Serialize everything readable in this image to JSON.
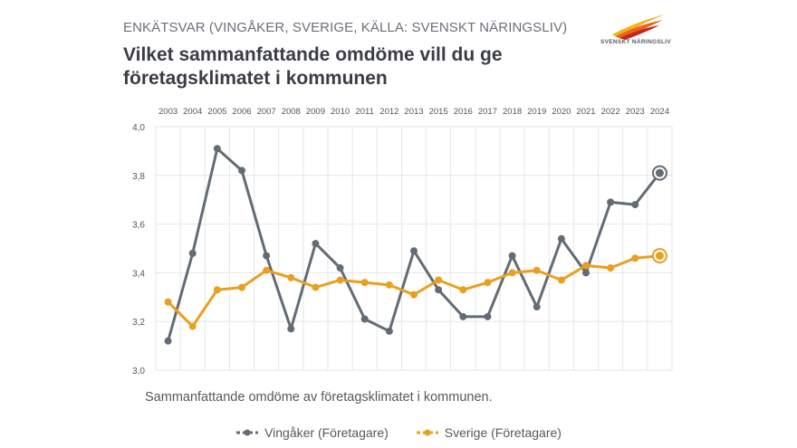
{
  "header": {
    "eyebrow": "ENKÄTSVAR (VINGÅKER, SVERIGE, KÄLLA: SVENSKT NÄRINGSLIV)",
    "title": "Vilket sammanfattande omdöme vill du ge företagsklimatet i kommunen"
  },
  "logo": {
    "text": "SVENSKT NÄRINGSLIV"
  },
  "caption": "Sammanfattande omdöme av företagsklimatet i kommunen.",
  "colors": {
    "series1": "#636b75",
    "series2": "#e8a020",
    "grid": "#e6e6e6"
  },
  "chart_data": {
    "type": "line",
    "categories": [
      "2003",
      "2004",
      "2005",
      "2006",
      "2007",
      "2008",
      "2009",
      "2010",
      "2011",
      "2012",
      "2013",
      "2015",
      "2016",
      "2017",
      "2018",
      "2019",
      "2020",
      "2021",
      "2022",
      "2023",
      "2024"
    ],
    "ylim": [
      3.0,
      4.0
    ],
    "yticks": [
      "3,0",
      "3,2",
      "3,4",
      "3,6",
      "3,8",
      "4,0"
    ],
    "ytick_values": [
      3.0,
      3.2,
      3.4,
      3.6,
      3.8,
      4.0
    ],
    "series": [
      {
        "name": "Vingåker (Företagare)",
        "color": "#636b75",
        "values": [
          3.12,
          3.48,
          3.91,
          3.82,
          3.47,
          3.17,
          3.52,
          3.42,
          3.21,
          3.16,
          3.49,
          3.33,
          3.22,
          3.22,
          3.47,
          3.26,
          3.54,
          3.4,
          3.69,
          3.68,
          3.81
        ]
      },
      {
        "name": "Sverige (Företagare)",
        "color": "#e8a020",
        "values": [
          3.28,
          3.18,
          3.33,
          3.34,
          3.41,
          3.38,
          3.34,
          3.37,
          3.36,
          3.35,
          3.31,
          3.37,
          3.33,
          3.36,
          3.4,
          3.41,
          3.37,
          3.43,
          3.42,
          3.46,
          3.47
        ]
      }
    ]
  }
}
